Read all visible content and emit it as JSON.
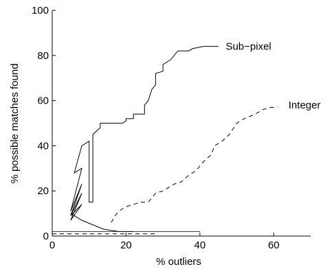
{
  "chart_data": {
    "type": "line",
    "title": "",
    "xlabel": "% outliers",
    "ylabel": "% possible matches found",
    "xlim": [
      0,
      70
    ],
    "ylim": [
      0,
      100
    ],
    "xticks": [
      0,
      20,
      40,
      60
    ],
    "yticks": [
      0,
      20,
      40,
      60,
      80,
      100
    ],
    "grid": false,
    "legend": "inline labels at series ends",
    "series": [
      {
        "name": "Sub−pixel",
        "style": "solid",
        "label_at": [
          47,
          84
        ],
        "points": [
          [
            5,
            9
          ],
          [
            8,
            14
          ],
          [
            5,
            7
          ],
          [
            8,
            19
          ],
          [
            5,
            9
          ],
          [
            8,
            23
          ],
          [
            5,
            11
          ],
          [
            8,
            30
          ],
          [
            6,
            28
          ],
          [
            8,
            40
          ],
          [
            10,
            42
          ],
          [
            10,
            15
          ],
          [
            11,
            15
          ],
          [
            11,
            45
          ],
          [
            13,
            48
          ],
          [
            13,
            50
          ],
          [
            19,
            50
          ],
          [
            20,
            51
          ],
          [
            20,
            52
          ],
          [
            22,
            52
          ],
          [
            22,
            54
          ],
          [
            25,
            54
          ],
          [
            25,
            58
          ],
          [
            26,
            60
          ],
          [
            27,
            65
          ],
          [
            28,
            67
          ],
          [
            28,
            72
          ],
          [
            30,
            73
          ],
          [
            30,
            76
          ],
          [
            32,
            78
          ],
          [
            33,
            80
          ],
          [
            34,
            82
          ],
          [
            37,
            82
          ],
          [
            38,
            83
          ],
          [
            41,
            84
          ],
          [
            45,
            84
          ]
        ]
      },
      {
        "name": "Integer",
        "style": "dashed",
        "label_at": [
          64,
          58
        ],
        "points": [
          [
            16,
            6
          ],
          [
            17,
            9
          ],
          [
            18,
            11
          ],
          [
            20,
            13
          ],
          [
            22,
            14
          ],
          [
            24,
            15
          ],
          [
            26,
            15
          ],
          [
            27,
            17
          ],
          [
            28,
            19
          ],
          [
            30,
            20
          ],
          [
            31,
            21
          ],
          [
            33,
            23
          ],
          [
            35,
            24
          ],
          [
            37,
            27
          ],
          [
            39,
            29
          ],
          [
            41,
            33
          ],
          [
            43,
            36
          ],
          [
            44,
            40
          ],
          [
            46,
            42
          ],
          [
            48,
            45
          ],
          [
            50,
            50
          ],
          [
            52,
            52
          ],
          [
            55,
            54
          ],
          [
            57,
            56
          ],
          [
            59,
            57
          ],
          [
            61,
            57
          ]
        ]
      },
      {
        "name": "",
        "style": "solid-thin",
        "points": [
          [
            0,
            2
          ],
          [
            40,
            2
          ]
        ]
      },
      {
        "name": "",
        "style": "dashed",
        "points": [
          [
            0,
            1
          ],
          [
            28,
            1
          ]
        ]
      },
      {
        "name": "",
        "style": "solid",
        "points": [
          [
            5,
            10
          ],
          [
            8,
            7
          ],
          [
            11,
            5
          ],
          [
            14,
            3
          ],
          [
            18,
            2
          ],
          [
            22,
            2
          ]
        ]
      }
    ]
  }
}
